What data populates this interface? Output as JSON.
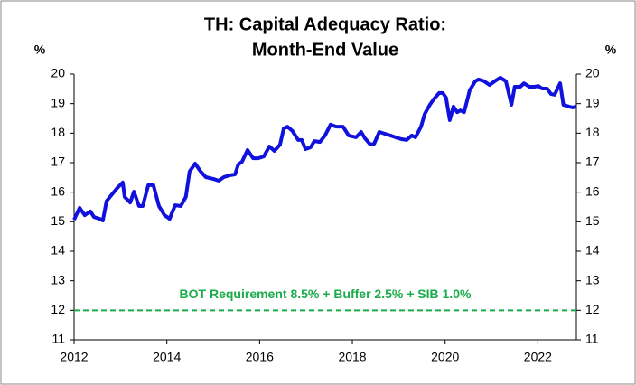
{
  "chart_data": {
    "type": "line",
    "title": [
      "TH: Capital Adequacy Ratio:",
      "Month-End Value"
    ],
    "y_unit": "%",
    "y2_unit": "%",
    "x": [
      2012.0,
      2012.12,
      2012.23,
      2012.35,
      2012.43,
      2012.55,
      2012.62,
      2012.7,
      2012.82,
      2012.93,
      2013.05,
      2013.09,
      2013.21,
      2013.29,
      2013.4,
      2013.48,
      2013.6,
      2013.71,
      2013.83,
      2013.95,
      2014.06,
      2014.18,
      2014.3,
      2014.41,
      2014.49,
      2014.61,
      2014.73,
      2014.84,
      2015.0,
      2015.12,
      2015.23,
      2015.35,
      2015.47,
      2015.54,
      2015.62,
      2015.74,
      2015.86,
      2015.97,
      2016.09,
      2016.21,
      2016.32,
      2016.44,
      2016.52,
      2016.6,
      2016.71,
      2016.83,
      2016.91,
      2016.99,
      2017.1,
      2017.18,
      2017.3,
      2017.41,
      2017.53,
      2017.65,
      2017.8,
      2017.92,
      2018.08,
      2018.19,
      2018.27,
      2018.39,
      2018.47,
      2018.58,
      2018.7,
      2018.82,
      2018.93,
      2019.05,
      2019.17,
      2019.28,
      2019.36,
      2019.48,
      2019.56,
      2019.67,
      2019.75,
      2019.87,
      2019.95,
      2020.02,
      2020.1,
      2020.18,
      2020.26,
      2020.33,
      2020.41,
      2020.53,
      2020.65,
      2020.72,
      2020.84,
      2020.96,
      2021.07,
      2021.19,
      2021.31,
      2021.43,
      2021.5,
      2021.62,
      2021.7,
      2021.82,
      2021.93,
      2022.01,
      2022.09,
      2022.2,
      2022.28,
      2022.36,
      2022.48,
      2022.55,
      2022.67,
      2022.75,
      2022.83
    ],
    "series": [
      {
        "name": "Capital Adequacy Ratio",
        "color": "#1111dd",
        "values": [
          15.07,
          15.47,
          15.22,
          15.35,
          15.16,
          15.1,
          15.04,
          15.7,
          15.93,
          16.14,
          16.33,
          15.84,
          15.65,
          16.02,
          15.53,
          15.53,
          16.24,
          16.24,
          15.53,
          15.22,
          15.1,
          15.56,
          15.53,
          15.84,
          16.7,
          16.97,
          16.7,
          16.51,
          16.45,
          16.39,
          16.51,
          16.57,
          16.6,
          16.94,
          17.03,
          17.43,
          17.15,
          17.15,
          17.21,
          17.55,
          17.4,
          17.61,
          18.16,
          18.22,
          18.07,
          17.77,
          17.77,
          17.46,
          17.52,
          17.73,
          17.7,
          17.92,
          18.29,
          18.22,
          18.22,
          17.92,
          17.86,
          18.04,
          17.83,
          17.61,
          17.64,
          18.04,
          17.98,
          17.92,
          17.86,
          17.8,
          17.77,
          17.92,
          17.86,
          18.22,
          18.65,
          18.96,
          19.14,
          19.36,
          19.36,
          19.2,
          18.44,
          18.9,
          18.71,
          18.77,
          18.71,
          19.45,
          19.76,
          19.82,
          19.76,
          19.63,
          19.76,
          19.88,
          19.76,
          18.96,
          19.57,
          19.57,
          19.69,
          19.57,
          19.57,
          19.6,
          19.51,
          19.51,
          19.33,
          19.3,
          19.69,
          18.96,
          18.9,
          18.87,
          18.9
        ]
      }
    ],
    "xlim": [
      2012,
      2022.83
    ],
    "xticks": [
      2012,
      2014,
      2016,
      2018,
      2020,
      2022
    ],
    "ylim": [
      11,
      20
    ],
    "yticks": [
      11,
      12,
      13,
      14,
      15,
      16,
      17,
      18,
      19,
      20
    ],
    "y2lim": [
      11,
      20
    ],
    "y2ticks": [
      11,
      12,
      13,
      14,
      15,
      16,
      17,
      18,
      19,
      20
    ],
    "reference_line": {
      "value": 12,
      "label": "BOT Requirement 8.5% + Buffer 2.5% + SIB 1.0%",
      "color": "#1aab4b"
    }
  }
}
